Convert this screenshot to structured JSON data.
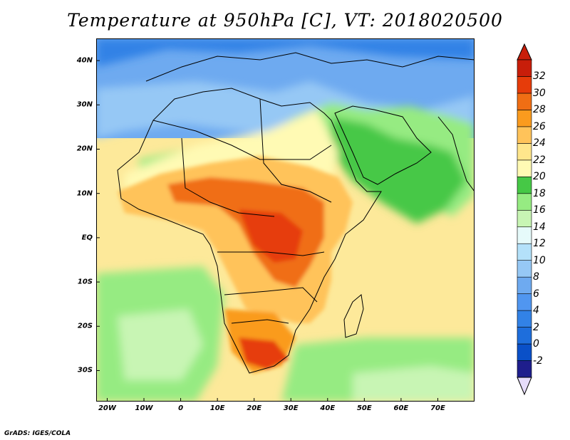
{
  "title": "Temperature at 950hPa [C], VT: 2018020500",
  "credit": "GrADS: IGES/COLA",
  "map": {
    "lon_range": [
      -23,
      80
    ],
    "lat_range": [
      -37,
      45
    ],
    "lat_ticks": [
      {
        "value": 40,
        "label": "40N"
      },
      {
        "value": 30,
        "label": "30N"
      },
      {
        "value": 20,
        "label": "20N"
      },
      {
        "value": 10,
        "label": "10N"
      },
      {
        "value": 0,
        "label": "EQ"
      },
      {
        "value": -10,
        "label": "10S"
      },
      {
        "value": -20,
        "label": "20S"
      },
      {
        "value": -30,
        "label": "30S"
      }
    ],
    "lon_ticks": [
      {
        "value": -20,
        "label": "20W"
      },
      {
        "value": -10,
        "label": "10W"
      },
      {
        "value": 0,
        "label": "0"
      },
      {
        "value": 10,
        "label": "10E"
      },
      {
        "value": 20,
        "label": "20E"
      },
      {
        "value": 30,
        "label": "30E"
      },
      {
        "value": 40,
        "label": "40E"
      },
      {
        "value": 50,
        "label": "50E"
      },
      {
        "value": 60,
        "label": "60E"
      },
      {
        "value": 70,
        "label": "70E"
      }
    ]
  },
  "colorbar": {
    "levels": [
      "-2",
      "0",
      "2",
      "4",
      "6",
      "8",
      "10",
      "12",
      "14",
      "16",
      "18",
      "20",
      "22",
      "24",
      "26",
      "28",
      "30",
      "32"
    ],
    "colors": [
      "#1e1e8c",
      "#0a50c8",
      "#1e6edc",
      "#3282e6",
      "#5096f0",
      "#6eaaf0",
      "#96c8f5",
      "#b4e1fa",
      "#e6fafa",
      "#c8f5b4",
      "#96eb82",
      "#46c846",
      "#fffab4",
      "#ffe68c",
      "#ffc35a",
      "#fa9b1e",
      "#f06e14",
      "#e63c0a",
      "#c81e0a"
    ],
    "below_color": "#e6dcfa",
    "above_color": "#c81e0a"
  }
}
